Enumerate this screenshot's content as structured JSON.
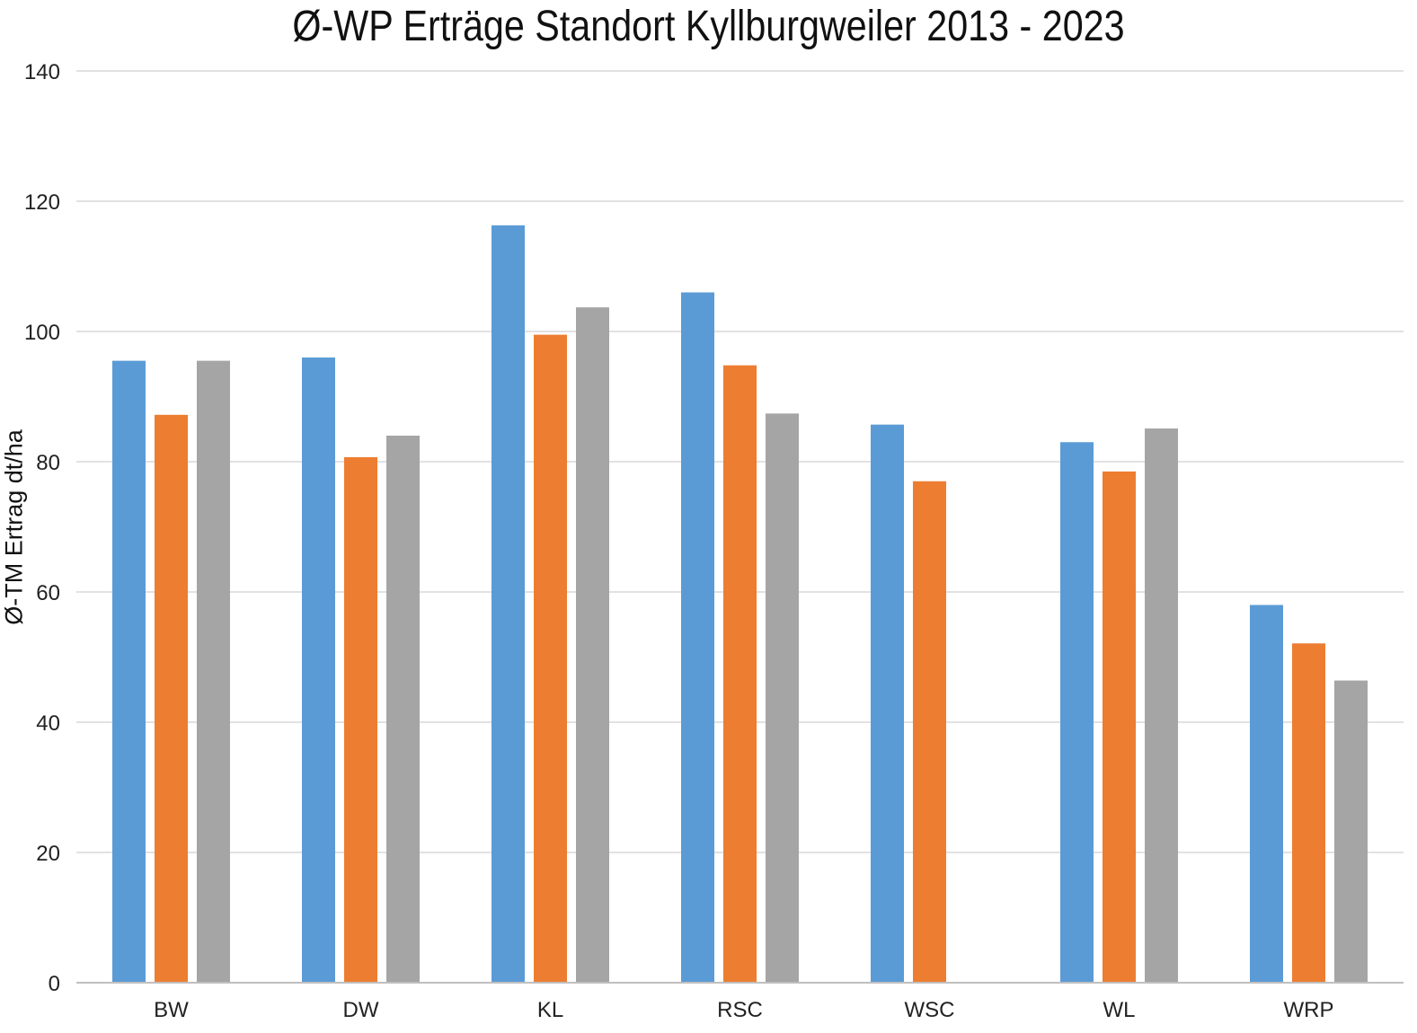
{
  "chart_data": {
    "type": "bar",
    "title": "Ø-WP Erträge Standort Kyllburgweiler 2013 - 2023",
    "xlabel": "",
    "ylabel": "Ø-TM Ertrag dt/ha",
    "ylim": [
      0,
      140
    ],
    "yticks": [
      0,
      20,
      40,
      60,
      80,
      100,
      120,
      140
    ],
    "grid": true,
    "legend": "none",
    "categories": [
      "BW",
      "DW",
      "KL",
      "RSC",
      "WSC",
      "WL",
      "WRP"
    ],
    "series": [
      {
        "color": "#5B9BD5",
        "values": [
          95.5,
          96.0,
          116.3,
          106.0,
          85.7,
          83.0,
          58.0
        ]
      },
      {
        "color": "#ED7D31",
        "values": [
          87.2,
          80.7,
          99.5,
          94.8,
          77.0,
          78.5,
          52.1
        ]
      },
      {
        "color": "#A5A5A5",
        "values": [
          95.5,
          84.0,
          103.7,
          87.4,
          null,
          85.1,
          46.4
        ]
      }
    ]
  }
}
